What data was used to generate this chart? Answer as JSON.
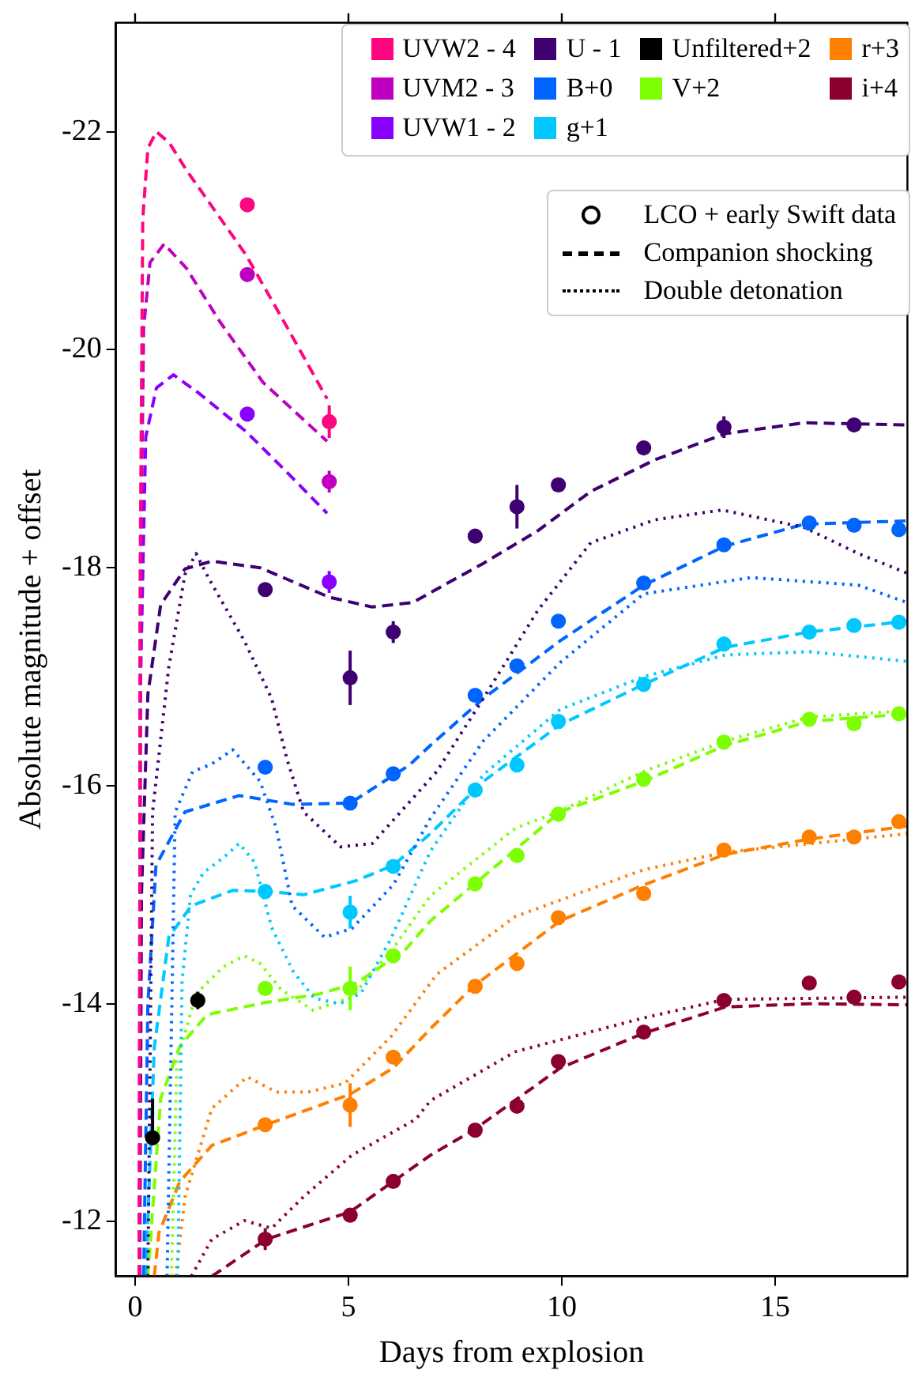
{
  "chart_data": {
    "type": "scatter",
    "xlabel": "Days from explosion",
    "ylabel": "Absolute magnitude + offset",
    "xlim": [
      -0.45,
      18.1
    ],
    "ylim": [
      -11.5,
      -23
    ],
    "xticks": [
      0,
      5,
      10,
      15
    ],
    "yticks": [
      -22,
      -20,
      -18,
      -16,
      -14,
      -12
    ],
    "legend": "top right",
    "annotations": [
      "LCO + early Swift data",
      "Companion shocking",
      "Double detonation"
    ],
    "series": [
      {
        "type": "line",
        "line_style": "dashed",
        "color": "#ff0580",
        "x": [
          0.1,
          0.12,
          0.18,
          0.3,
          0.5,
          0.8,
          1.2,
          1.65,
          2.6,
          3.5,
          4.5
        ],
        "values": [
          -11.5,
          -18,
          -21.2,
          -21.85,
          -22.0,
          -21.9,
          -21.65,
          -21.4,
          -20.87,
          -20.25,
          -19.55
        ]
      },
      {
        "type": "line",
        "line_style": "dashed",
        "color": "#c000c0",
        "x": [
          0.1,
          0.12,
          0.2,
          0.35,
          0.68,
          1.2,
          2.0,
          3.0,
          4.5
        ],
        "values": [
          -11.5,
          -17.5,
          -20.2,
          -20.8,
          -20.97,
          -20.75,
          -20.25,
          -19.7,
          -19.16
        ]
      },
      {
        "type": "line",
        "line_style": "dashed",
        "color": "#8a00ff",
        "x": [
          0.1,
          0.13,
          0.25,
          0.5,
          0.9,
          1.5,
          2.6,
          3.5,
          4.5
        ],
        "values": [
          -11.5,
          -17,
          -19.2,
          -19.65,
          -19.77,
          -19.6,
          -19.25,
          -18.9,
          -18.5
        ]
      },
      {
        "type": "line",
        "line_style": "dashed",
        "color": "#3f0071",
        "x": [
          0.11,
          0.15,
          0.3,
          0.6,
          1.17,
          1.8,
          2.93,
          4.55,
          5.56,
          6.5,
          8.16,
          9.44,
          10.68,
          12.18,
          13.83,
          15.68,
          18.1
        ],
        "values": [
          -11.5,
          -15,
          -16.84,
          -17.66,
          -17.99,
          -18.06,
          -18.0,
          -17.73,
          -17.64,
          -17.68,
          -18.04,
          -18.34,
          -18.7,
          -18.99,
          -19.23,
          -19.33,
          -19.31
        ]
      },
      {
        "type": "line",
        "line_style": "dotted",
        "color": "#3f0071",
        "x": [
          0.3,
          0.41,
          0.79,
          1.17,
          1.43,
          1.73,
          2.56,
          3.2,
          3.57,
          3.95,
          4.81,
          5.56,
          7.07,
          8.16,
          9.44,
          10.68,
          12.18,
          13.76,
          15.68,
          16.95,
          18.1
        ],
        "values": [
          -11.5,
          -15.76,
          -17.09,
          -17.94,
          -18.13,
          -17.9,
          -17.33,
          -16.8,
          -16.23,
          -15.76,
          -15.44,
          -15.47,
          -16.13,
          -16.8,
          -17.61,
          -18.23,
          -18.44,
          -18.53,
          -18.37,
          -18.13,
          -17.95
        ]
      },
      {
        "type": "line",
        "line_style": "dashed",
        "color": "#0064ff",
        "x": [
          0.2,
          0.3,
          0.49,
          1.17,
          2.44,
          3.68,
          5.04,
          6.43,
          6.92,
          8.16,
          9.96,
          11.92,
          13.83,
          15.68,
          18.1
        ],
        "values": [
          -11.5,
          -14.0,
          -15.27,
          -15.76,
          -15.91,
          -15.83,
          -15.84,
          -16.19,
          -16.37,
          -16.8,
          -17.33,
          -17.84,
          -18.2,
          -18.4,
          -18.43
        ]
      },
      {
        "type": "line",
        "line_style": "dotted",
        "color": "#0064ff",
        "x": [
          0.75,
          0.94,
          1.35,
          1.8,
          2.29,
          2.93,
          3.31,
          3.68,
          4.44,
          5.08,
          6.05,
          6.92,
          8.16,
          9.96,
          11.92,
          14.44,
          16.95,
          18.1
        ],
        "values": [
          -11.5,
          -15.76,
          -16.13,
          -16.2,
          -16.33,
          -16.04,
          -15.61,
          -14.9,
          -14.61,
          -14.69,
          -15.09,
          -15.7,
          -16.41,
          -17.13,
          -17.76,
          -17.91,
          -17.84,
          -17.68
        ]
      },
      {
        "type": "line",
        "line_style": "dashed",
        "color": "#00c8ff",
        "x": [
          0.25,
          0.45,
          0.79,
          1.32,
          2.29,
          3.08,
          3.95,
          5.19,
          6.05,
          6.92,
          8.16,
          9.96,
          11.92,
          13.83,
          15.79,
          18.1
        ],
        "values": [
          -11.5,
          -13.6,
          -14.61,
          -14.9,
          -15.04,
          -15.03,
          -15.0,
          -15.13,
          -15.27,
          -15.56,
          -16.04,
          -16.56,
          -16.93,
          -17.27,
          -17.41,
          -17.51
        ]
      },
      {
        "type": "line",
        "line_style": "dotted",
        "color": "#00c8ff",
        "x": [
          1.0,
          1.1,
          1.3,
          1.6,
          2.1,
          2.44,
          2.8,
          3.2,
          3.7,
          4.2,
          4.8,
          5.3,
          6.0,
          6.92,
          8.16,
          9.96,
          11.92,
          13.83,
          15.8,
          18.1
        ],
        "values": [
          -11.5,
          -14.2,
          -15.0,
          -15.2,
          -15.35,
          -15.47,
          -15.3,
          -14.7,
          -14.3,
          -14.05,
          -14.0,
          -14.1,
          -14.6,
          -15.4,
          -16.1,
          -16.7,
          -17.0,
          -17.2,
          -17.23,
          -17.14
        ]
      },
      {
        "type": "line",
        "line_style": "dashed",
        "color": "#7cff00",
        "x": [
          0.3,
          0.6,
          1.05,
          1.69,
          3.04,
          4.32,
          5.19,
          6.32,
          6.92,
          7.93,
          9.96,
          11.92,
          13.83,
          15.79,
          18.1
        ],
        "values": [
          -11.5,
          -13.13,
          -13.61,
          -13.9,
          -14.01,
          -14.09,
          -14.19,
          -14.49,
          -14.76,
          -15.09,
          -15.76,
          -16.04,
          -16.37,
          -16.59,
          -16.66
        ]
      },
      {
        "type": "line",
        "line_style": "dotted",
        "color": "#7cff00",
        "x": [
          0.85,
          0.98,
          1.43,
          2.07,
          2.56,
          2.93,
          3.42,
          4.17,
          5.08,
          6.05,
          6.92,
          8.91,
          9.92,
          11.92,
          13.83,
          15.79,
          18.1
        ],
        "values": [
          -11.5,
          -13.47,
          -14.09,
          -14.34,
          -14.44,
          -14.37,
          -14.13,
          -13.94,
          -14.06,
          -14.51,
          -14.99,
          -15.61,
          -15.76,
          -16.13,
          -16.41,
          -16.63,
          -16.69
        ]
      },
      {
        "type": "line",
        "line_style": "dashed",
        "color": "#ff7f00",
        "x": [
          0.45,
          0.56,
          1.05,
          1.8,
          3.08,
          5.04,
          6.05,
          6.92,
          7.93,
          9.96,
          11.92,
          13.83,
          15.79,
          18.1
        ],
        "values": [
          -11.5,
          -11.9,
          -12.37,
          -12.7,
          -12.89,
          -13.17,
          -13.41,
          -13.77,
          -14.16,
          -14.76,
          -15.09,
          -15.37,
          -15.51,
          -15.63
        ]
      },
      {
        "type": "line",
        "line_style": "dotted",
        "color": "#ff7f00",
        "x": [
          0.95,
          1.17,
          1.8,
          2.63,
          3.31,
          4.06,
          4.92,
          6.0,
          7.07,
          8.91,
          11.92,
          13.83,
          18.1
        ],
        "values": [
          -11.5,
          -12.23,
          -13.04,
          -13.33,
          -13.19,
          -13.19,
          -13.27,
          -13.7,
          -14.27,
          -14.8,
          -15.23,
          -15.39,
          -15.56
        ]
      },
      {
        "type": "line",
        "line_style": "dashed",
        "color": "#8c0030",
        "x": [
          1.8,
          3.08,
          5.04,
          6.05,
          6.92,
          7.93,
          9.96,
          11.92,
          13.83,
          15.79,
          18.1
        ],
        "values": [
          -11.5,
          -11.84,
          -12.09,
          -12.37,
          -12.61,
          -12.84,
          -13.41,
          -13.73,
          -13.97,
          -14.0,
          -13.99
        ]
      },
      {
        "type": "line",
        "line_style": "dotted",
        "color": "#8c0030",
        "x": [
          1.32,
          1.8,
          2.56,
          3.2,
          3.95,
          5.08,
          6.58,
          6.92,
          8.91,
          11.92,
          13.83,
          18.1
        ],
        "values": [
          -11.5,
          -11.84,
          -12.01,
          -11.94,
          -12.23,
          -12.61,
          -12.94,
          -13.11,
          -13.56,
          -13.87,
          -14.04,
          -14.06
        ]
      },
      {
        "name": "UVW2 - 4",
        "marker": "circle",
        "color": "#ff0580",
        "x": [
          2.63,
          4.55
        ],
        "values": [
          -21.33,
          -19.34
        ],
        "errors": [
          null,
          0.15
        ]
      },
      {
        "name": "UVM2 - 3",
        "marker": "circle",
        "color": "#c000c0",
        "x": [
          2.63,
          4.55
        ],
        "values": [
          -20.69,
          -18.79
        ],
        "errors": [
          null,
          0.1
        ]
      },
      {
        "name": "UVW1 - 2",
        "marker": "circle",
        "color": "#8a00ff",
        "x": [
          2.63,
          4.55
        ],
        "values": [
          -19.41,
          -17.87
        ],
        "errors": [
          null,
          0.1
        ]
      },
      {
        "name": "U - 1",
        "marker": "circle",
        "color": "#3f0071",
        "x": [
          3.05,
          5.04,
          6.05,
          7.97,
          8.95,
          9.92,
          11.92,
          13.8,
          16.85
        ],
        "values": [
          -17.8,
          -16.99,
          -17.41,
          -18.29,
          -18.56,
          -18.76,
          -19.1,
          -19.29,
          -19.31
        ],
        "errors": [
          null,
          0.25,
          0.1,
          null,
          0.2,
          null,
          null,
          0.1,
          null
        ]
      },
      {
        "name": "B+0",
        "marker": "circle",
        "color": "#0064ff",
        "x": [
          3.05,
          5.04,
          6.05,
          7.97,
          8.95,
          9.92,
          11.92,
          13.8,
          15.8,
          16.85,
          17.9
        ],
        "values": [
          -16.17,
          -15.84,
          -16.11,
          -16.83,
          -17.1,
          -17.51,
          -17.86,
          -18.21,
          -18.41,
          -18.39,
          -18.35
        ]
      },
      {
        "name": "g+1",
        "marker": "circle",
        "color": "#00c8ff",
        "x": [
          3.05,
          5.04,
          6.05,
          7.97,
          8.95,
          9.92,
          11.92,
          13.8,
          15.8,
          16.85,
          17.9
        ],
        "values": [
          -15.03,
          -14.84,
          -15.26,
          -15.96,
          -16.19,
          -16.59,
          -16.93,
          -17.3,
          -17.41,
          -17.47,
          -17.5
        ],
        "errors": [
          null,
          0.15,
          null,
          null,
          null,
          null,
          null,
          null,
          null,
          null,
          null
        ]
      },
      {
        "name": "Unfiltered+2",
        "marker": "circle",
        "color": "#000000",
        "x": [
          0.41,
          1.47
        ],
        "values": [
          -12.77,
          -14.03
        ],
        "errors": [
          [
            -13.13,
            -12.77
          ],
          0.08
        ],
        "xerrors": [
          null,
          0.12
        ]
      },
      {
        "name": "V+2",
        "marker": "circle",
        "color": "#7cff00",
        "x": [
          3.05,
          5.04,
          6.05,
          7.97,
          8.95,
          9.92,
          11.92,
          13.8,
          15.8,
          16.85,
          17.9
        ],
        "values": [
          -14.14,
          -14.14,
          -14.44,
          -15.1,
          -15.36,
          -15.74,
          -16.06,
          -16.4,
          -16.61,
          -16.57,
          -16.66
        ],
        "errors": [
          null,
          0.2,
          null,
          null,
          null,
          null,
          null,
          null,
          null,
          null,
          null
        ]
      },
      {
        "name": "r+3",
        "marker": "circle",
        "color": "#ff7f00",
        "x": [
          3.05,
          5.04,
          6.05,
          7.97,
          8.95,
          9.92,
          11.92,
          13.8,
          15.8,
          16.85,
          17.9
        ],
        "values": [
          -12.89,
          -13.07,
          -13.51,
          -14.16,
          -14.37,
          -14.79,
          -15.01,
          -15.41,
          -15.53,
          -15.53,
          -15.67
        ],
        "errors": [
          null,
          0.2,
          null,
          null,
          null,
          null,
          null,
          null,
          null,
          null,
          null
        ]
      },
      {
        "name": "i+4",
        "marker": "circle",
        "color": "#8c0030",
        "x": [
          3.05,
          5.04,
          6.05,
          7.97,
          8.95,
          9.92,
          11.92,
          13.8,
          15.8,
          16.85,
          17.9
        ],
        "values": [
          -11.84,
          -12.06,
          -12.37,
          -12.84,
          -13.06,
          -13.47,
          -13.74,
          -14.03,
          -14.19,
          -14.06,
          -14.2
        ],
        "errors": [
          0.1,
          null,
          null,
          null,
          null,
          null,
          null,
          null,
          null,
          null,
          null
        ]
      }
    ]
  }
}
